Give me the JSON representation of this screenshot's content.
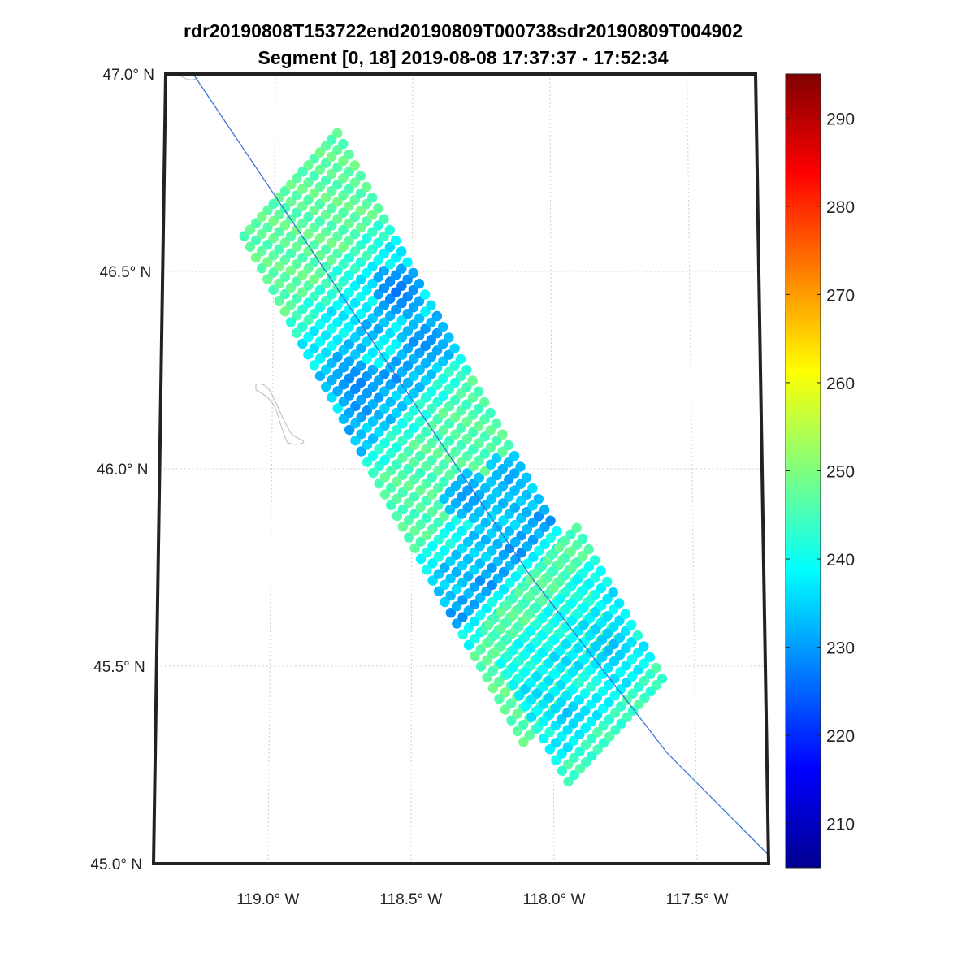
{
  "chart_data": {
    "type": "scatter",
    "title": "rdr20190808T153722end20190809T000738sdr20190809T004902",
    "subtitle": "Segment [0, 18] 2019-08-08 17:37:37 - 17:52:34",
    "lon_ticks": [
      -119.0,
      -118.5,
      -118.0,
      -117.5
    ],
    "lon_tick_labels": [
      "119.0° W",
      "118.5° W",
      "118.0° W",
      "117.5° W"
    ],
    "lat_ticks": [
      45.0,
      45.5,
      46.0,
      46.5,
      47.0
    ],
    "lat_tick_labels": [
      "45.0° N",
      "45.5° N",
      "46.0° N",
      "46.5° N",
      "47.0° N"
    ],
    "lon_range": [
      -119.4,
      -117.25
    ],
    "lat_range": [
      45.0,
      47.0
    ],
    "grid": true,
    "colormap": "jet",
    "color_range": [
      205,
      295
    ],
    "colorbar_ticks": [
      210,
      220,
      230,
      240,
      250,
      260,
      270,
      280,
      290
    ],
    "colorbar_tick_labels": [
      "210",
      "220",
      "230",
      "240",
      "250",
      "260",
      "270",
      "280",
      "290"
    ],
    "colorbar_placement": "right",
    "track_color": "#2f6fd6",
    "ground_track": [
      [
        -119.3,
        47.0
      ],
      [
        -118.08,
        45.73
      ],
      [
        -117.6,
        45.28
      ],
      [
        -117.22,
        45.0
      ]
    ],
    "swaths": [
      {
        "name": "upper",
        "along_track_axis": [
          0.616,
          -0.788
        ],
        "cross_track_axis": [
          0.788,
          0.616
        ],
        "start_center": [
          -118.94,
          46.72
        ],
        "along_step_deg": 0.0346,
        "cross_step_deg": 0.0189,
        "n_along": 48,
        "n_cross": 17,
        "value_bands": [
          {
            "along": [
              0,
              8
            ],
            "value": 247
          },
          {
            "along": [
              8,
              10
            ],
            "value": 243
          },
          {
            "along": [
              10,
              13
            ],
            "value": 238
          },
          {
            "along": [
              13,
              15
            ],
            "value": 233
          },
          {
            "along": [
              15,
              17
            ],
            "value": 238
          },
          {
            "along": [
              17,
              19
            ],
            "value": 231
          },
          {
            "along": [
              19,
              21
            ],
            "value": 234
          },
          {
            "along": [
              21,
              23
            ],
            "value": 242
          },
          {
            "along": [
              23,
              30
            ],
            "value": 246
          },
          {
            "along": [
              30,
              32
            ],
            "value": 240
          },
          {
            "along": [
              32,
              35
            ],
            "value": 234
          },
          {
            "along": [
              35,
              37
            ],
            "value": 231
          },
          {
            "along": [
              37,
              39
            ],
            "value": 239
          },
          {
            "along": [
              39,
              48
            ],
            "value": 247
          }
        ],
        "hotspots": [
          {
            "lon": -118.55,
            "lat": 46.45,
            "value": 226
          },
          {
            "lon": -118.7,
            "lat": 46.22,
            "value": 227
          },
          {
            "lon": -118.45,
            "lat": 46.32,
            "value": 228
          },
          {
            "lon": -118.3,
            "lat": 45.93,
            "value": 229
          },
          {
            "lon": -118.15,
            "lat": 45.98,
            "value": 230
          }
        ]
      },
      {
        "name": "lower",
        "along_track_axis": [
          0.616,
          -0.788
        ],
        "cross_track_axis": [
          0.788,
          0.616
        ],
        "start_center": [
          -118.08,
          45.72
        ],
        "along_step_deg": 0.0346,
        "cross_step_deg": 0.0189,
        "n_along": 15,
        "n_cross": 17,
        "value_bands": [
          {
            "along": [
              0,
              3
            ],
            "value": 246
          },
          {
            "along": [
              3,
              6
            ],
            "value": 240
          },
          {
            "along": [
              6,
              9
            ],
            "value": 237
          },
          {
            "along": [
              9,
              11
            ],
            "value": 241
          },
          {
            "along": [
              11,
              13
            ],
            "value": 238
          },
          {
            "along": [
              13,
              15
            ],
            "value": 244
          }
        ],
        "hotspots": [
          {
            "lon": -117.8,
            "lat": 45.55,
            "value": 232
          },
          {
            "lon": -117.95,
            "lat": 45.38,
            "value": 233
          }
        ]
      }
    ]
  }
}
